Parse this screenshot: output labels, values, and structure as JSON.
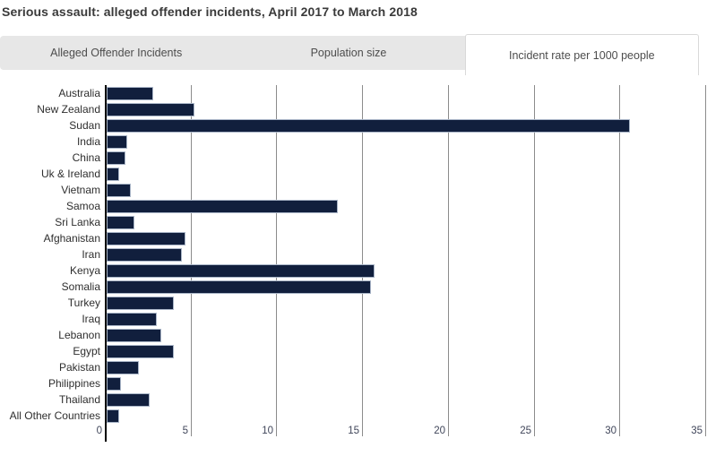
{
  "title": "Serious assault: alleged offender incidents, April 2017 to March 2018",
  "tabs": [
    {
      "label": "Alleged Offender Incidents",
      "active": false
    },
    {
      "label": "Population size",
      "active": false
    },
    {
      "label": "Incident rate per 1000 people",
      "active": true
    }
  ],
  "colors": {
    "bar_fill": "#111f3d",
    "bar_border": "#aab6c8",
    "gridline": "#8c8c8c",
    "axis_line": "#000000",
    "tab_bar_bg": "#e7e7e7",
    "active_tab_bg": "#ffffff",
    "active_tab_border": "#d9d9d9",
    "title_text": "#3a3a3a",
    "tab_text": "#4d4d4d"
  },
  "chart_data": {
    "type": "bar",
    "orientation": "horizontal",
    "title": "Serious assault: alleged offender incidents, April 2017 to March 2018",
    "xlabel": "",
    "ylabel": "",
    "xlim": [
      0,
      35
    ],
    "xticks": [
      0,
      5,
      10,
      15,
      20,
      25,
      30,
      35
    ],
    "grid": "vertical-only",
    "legend": "none",
    "categories": [
      "Australia",
      "New Zealand",
      "Sudan",
      "India",
      "China",
      "Uk & Ireland",
      "Vietnam",
      "Samoa",
      "Sri Lanka",
      "Afghanistan",
      "Iran",
      "Kenya",
      "Somalia",
      "Turkey",
      "Iraq",
      "Lebanon",
      "Egypt",
      "Pakistan",
      "Philippines",
      "Thailand",
      "All Other Countries"
    ],
    "values": [
      2.7,
      5.1,
      30.5,
      1.2,
      1.1,
      0.75,
      1.4,
      13.5,
      1.6,
      4.6,
      4.4,
      15.6,
      15.4,
      3.9,
      2.9,
      3.2,
      3.9,
      1.9,
      0.85,
      2.5,
      0.75
    ]
  }
}
